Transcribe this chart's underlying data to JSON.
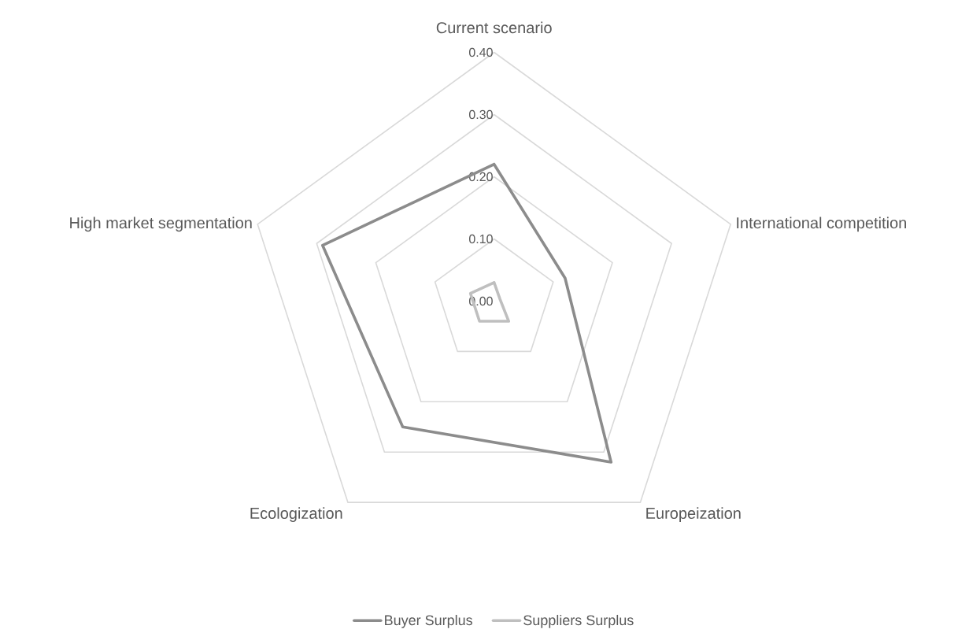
{
  "chart_data": {
    "type": "radar",
    "categories": [
      "Current scenario",
      "International competition",
      "Europeization",
      "Ecologization",
      "High market segmentation"
    ],
    "series": [
      {
        "name": "Buyer Surplus",
        "color": "#8c8c8c",
        "values": [
          0.22,
          0.12,
          0.32,
          0.25,
          0.29
        ]
      },
      {
        "name": "Suppliers Surplus",
        "color": "#bfbfbf",
        "values": [
          0.03,
          0.01,
          0.04,
          0.04,
          0.04
        ]
      }
    ],
    "ylim": [
      0,
      0.4
    ],
    "yticks": [
      {
        "value": 0,
        "label": "0.00"
      },
      {
        "value": 0.1,
        "label": "0.10"
      },
      {
        "value": 0.2,
        "label": "0.20"
      },
      {
        "value": 0.3,
        "label": "0.30"
      },
      {
        "value": 0.4,
        "label": "0.40"
      }
    ],
    "grid": true,
    "legend": "bottom",
    "line_style": "solid",
    "marker": "none"
  }
}
